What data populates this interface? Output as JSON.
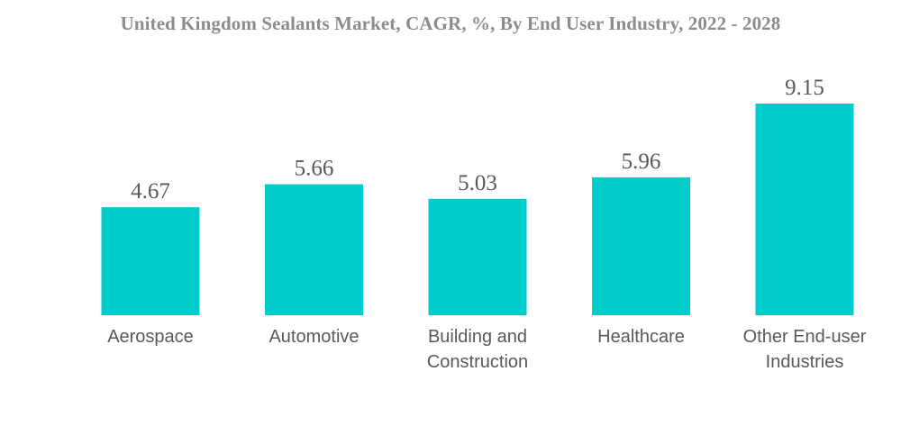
{
  "chart_data": {
    "type": "bar",
    "title": "United Kingdom Sealants Market, CAGR, %, By End User Industry, 2022 - 2028",
    "categories": [
      [
        "Aerospace"
      ],
      [
        "Automotive"
      ],
      [
        "Building and",
        "Construction"
      ],
      [
        "Healthcare"
      ],
      [
        "Other End-user",
        "Industries"
      ]
    ],
    "values": [
      4.67,
      5.66,
      5.03,
      5.96,
      9.15
    ],
    "value_labels": [
      "4.67",
      "5.66",
      "5.03",
      "5.96",
      "9.15"
    ],
    "xlabel": "",
    "ylabel": "",
    "ylim": [
      0,
      9.15
    ],
    "grid": false,
    "legend": "none",
    "bar_color": "#00cccc"
  }
}
